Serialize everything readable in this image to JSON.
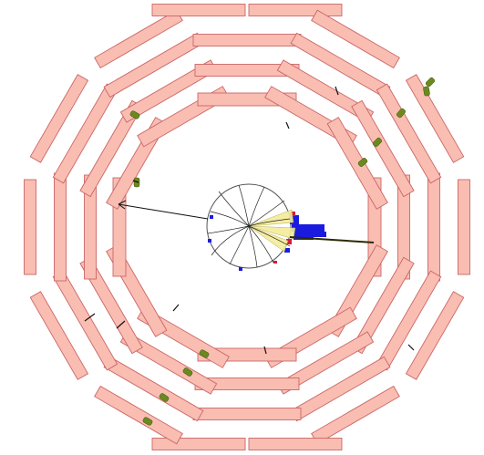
{
  "display": {
    "view": "event-display-transverse",
    "colors": {
      "muon_chamber": "#f9bdb2",
      "chamber_outline": "#cc6666",
      "muon_hit": "#6b8a1e",
      "track": "#222222",
      "jet": "#f3ec9a",
      "calo_em": "#1b1be0",
      "calo_had": "#d81b3a"
    },
    "layers": 4,
    "sectors_per_layer": 12
  }
}
